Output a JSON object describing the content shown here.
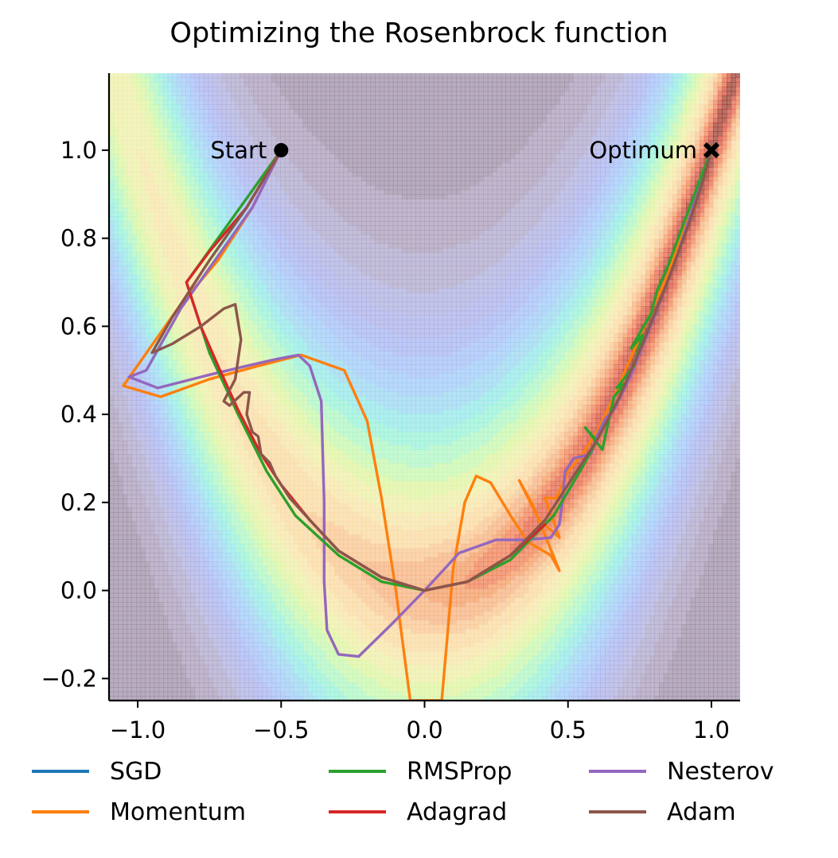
{
  "chart_data": {
    "type": "line",
    "title": "Optimizing the Rosenbrock function",
    "xlabel": "",
    "ylabel": "",
    "xlim": [
      -1.1,
      1.1
    ],
    "ylim": [
      -0.25,
      1.175
    ],
    "x_ticks": [
      "−1.0",
      "−0.5",
      "0.0",
      "0.5",
      "1.0"
    ],
    "y_ticks": [
      "−0.2",
      "0.0",
      "0.2",
      "0.4",
      "0.6",
      "0.8",
      "1.0"
    ],
    "x_tick_values": [
      -1.0,
      -0.5,
      0.0,
      0.5,
      1.0
    ],
    "y_tick_values": [
      -0.2,
      0.0,
      0.2,
      0.4,
      0.6,
      0.8,
      1.0
    ],
    "background": "filled contour plot of the Rosenbrock function",
    "annotations": [
      {
        "label": "Start",
        "x": -0.5,
        "y": 1.0,
        "marker": "circle"
      },
      {
        "label": "Optimum",
        "x": 1.0,
        "y": 1.0,
        "marker": "x"
      }
    ],
    "legend": {
      "placement": "below",
      "columns": 3
    },
    "series": [
      {
        "name": "SGD",
        "color": "#1f77b4",
        "points": []
      },
      {
        "name": "Momentum",
        "color": "#ff7f0e",
        "points": [
          [
            -0.5,
            1.0
          ],
          [
            -0.6,
            0.87
          ],
          [
            -0.72,
            0.75
          ],
          [
            -0.85,
            0.65
          ],
          [
            -0.98,
            0.53
          ],
          [
            -1.05,
            0.465
          ],
          [
            -0.92,
            0.44
          ],
          [
            -0.75,
            0.48
          ],
          [
            -0.58,
            0.51
          ],
          [
            -0.43,
            0.535
          ],
          [
            -0.28,
            0.5
          ],
          [
            -0.2,
            0.385
          ],
          [
            -0.15,
            0.21
          ],
          [
            -0.1,
            0.0
          ],
          [
            -0.05,
            -0.25
          ],
          [
            0.06,
            -0.25
          ],
          [
            0.1,
            0.05
          ],
          [
            0.14,
            0.2
          ],
          [
            0.18,
            0.26
          ],
          [
            0.23,
            0.245
          ],
          [
            0.3,
            0.17
          ],
          [
            0.36,
            0.11
          ],
          [
            0.44,
            0.08
          ],
          [
            0.47,
            0.045
          ],
          [
            0.38,
            0.19
          ],
          [
            0.33,
            0.25
          ],
          [
            0.4,
            0.16
          ],
          [
            0.47,
            0.12
          ],
          [
            0.42,
            0.21
          ],
          [
            0.46,
            0.21
          ],
          [
            0.5,
            0.27
          ],
          [
            0.55,
            0.31
          ],
          [
            0.6,
            0.36
          ],
          [
            0.66,
            0.44
          ],
          [
            0.72,
            0.53
          ],
          [
            0.78,
            0.62
          ],
          [
            0.85,
            0.72
          ],
          [
            0.92,
            0.85
          ],
          [
            0.97,
            0.95
          ],
          [
            1.0,
            1.0
          ]
        ]
      },
      {
        "name": "RMSProp",
        "color": "#2ca02c",
        "points": [
          [
            -0.5,
            1.0
          ],
          [
            -0.83,
            0.7
          ],
          [
            -0.75,
            0.54
          ],
          [
            -0.65,
            0.4
          ],
          [
            -0.55,
            0.27
          ],
          [
            -0.45,
            0.17
          ],
          [
            -0.3,
            0.08
          ],
          [
            -0.15,
            0.02
          ],
          [
            0.0,
            0.0
          ],
          [
            0.15,
            0.02
          ],
          [
            0.3,
            0.07
          ],
          [
            0.45,
            0.17
          ],
          [
            0.55,
            0.28
          ],
          [
            0.6,
            0.34
          ],
          [
            0.56,
            0.37
          ],
          [
            0.62,
            0.32
          ],
          [
            0.66,
            0.44
          ],
          [
            0.7,
            0.47
          ],
          [
            0.67,
            0.46
          ],
          [
            0.73,
            0.51
          ],
          [
            0.76,
            0.58
          ],
          [
            0.72,
            0.55
          ],
          [
            0.79,
            0.63
          ],
          [
            0.81,
            0.68
          ],
          [
            0.85,
            0.74
          ],
          [
            0.89,
            0.81
          ],
          [
            0.93,
            0.88
          ],
          [
            0.97,
            0.95
          ],
          [
            1.0,
            1.0
          ]
        ]
      },
      {
        "name": "Adagrad",
        "color": "#d62728",
        "points": [
          [
            -0.5,
            1.0
          ],
          [
            -0.62,
            0.87
          ],
          [
            -0.75,
            0.77
          ],
          [
            -0.83,
            0.7
          ],
          [
            -0.78,
            0.6
          ],
          [
            -0.72,
            0.51
          ],
          [
            -0.65,
            0.41
          ],
          [
            -0.57,
            0.31
          ],
          [
            -0.5,
            0.24
          ],
          [
            -0.4,
            0.16
          ],
          [
            -0.3,
            0.09
          ],
          [
            -0.15,
            0.03
          ],
          [
            0.0,
            0.0
          ],
          [
            0.15,
            0.02
          ],
          [
            0.3,
            0.08
          ],
          [
            0.42,
            0.15
          ]
        ]
      },
      {
        "name": "Nesterov",
        "color": "#9467bd",
        "points": [
          [
            -0.5,
            1.0
          ],
          [
            -0.6,
            0.87
          ],
          [
            -0.72,
            0.76
          ],
          [
            -0.85,
            0.64
          ],
          [
            -0.97,
            0.5
          ],
          [
            -1.03,
            0.485
          ],
          [
            -0.93,
            0.46
          ],
          [
            -0.75,
            0.49
          ],
          [
            -0.62,
            0.51
          ],
          [
            -0.52,
            0.525
          ],
          [
            -0.44,
            0.535
          ],
          [
            -0.4,
            0.51
          ],
          [
            -0.36,
            0.43
          ],
          [
            -0.35,
            0.2
          ],
          [
            -0.35,
            0.02
          ],
          [
            -0.34,
            -0.09
          ],
          [
            -0.3,
            -0.145
          ],
          [
            -0.23,
            -0.15
          ],
          [
            -0.12,
            -0.08
          ],
          [
            0.0,
            0.0
          ],
          [
            0.12,
            0.085
          ],
          [
            0.25,
            0.115
          ],
          [
            0.35,
            0.115
          ],
          [
            0.44,
            0.12
          ],
          [
            0.47,
            0.15
          ],
          [
            0.48,
            0.2
          ],
          [
            0.49,
            0.27
          ],
          [
            0.52,
            0.3
          ],
          [
            0.58,
            0.31
          ],
          [
            0.6,
            0.35
          ],
          [
            0.63,
            0.39
          ],
          [
            0.66,
            0.41
          ],
          [
            0.72,
            0.49
          ],
          [
            0.8,
            0.62
          ],
          [
            0.88,
            0.76
          ],
          [
            0.95,
            0.9
          ],
          [
            1.0,
            1.0
          ]
        ]
      },
      {
        "name": "Adam",
        "color": "#8c564b",
        "points": [
          [
            -0.5,
            1.0
          ],
          [
            -0.62,
            0.87
          ],
          [
            -0.75,
            0.75
          ],
          [
            -0.88,
            0.62
          ],
          [
            -0.95,
            0.54
          ],
          [
            -0.88,
            0.56
          ],
          [
            -0.78,
            0.6
          ],
          [
            -0.7,
            0.64
          ],
          [
            -0.66,
            0.65
          ],
          [
            -0.64,
            0.57
          ],
          [
            -0.66,
            0.48
          ],
          [
            -0.7,
            0.43
          ],
          [
            -0.68,
            0.42
          ],
          [
            -0.63,
            0.45
          ],
          [
            -0.61,
            0.45
          ],
          [
            -0.62,
            0.4
          ],
          [
            -0.6,
            0.36
          ],
          [
            -0.58,
            0.35
          ],
          [
            -0.57,
            0.31
          ],
          [
            -0.54,
            0.29
          ],
          [
            -0.52,
            0.26
          ],
          [
            -0.47,
            0.21
          ],
          [
            -0.4,
            0.16
          ],
          [
            -0.3,
            0.09
          ],
          [
            -0.15,
            0.03
          ],
          [
            0.0,
            0.0
          ],
          [
            0.15,
            0.02
          ],
          [
            0.3,
            0.08
          ],
          [
            0.42,
            0.16
          ],
          [
            0.52,
            0.26
          ],
          [
            0.6,
            0.34
          ],
          [
            0.68,
            0.44
          ],
          [
            0.76,
            0.56
          ],
          [
            0.84,
            0.69
          ],
          [
            0.92,
            0.83
          ],
          [
            0.97,
            0.93
          ],
          [
            1.0,
            1.0
          ]
        ]
      }
    ]
  }
}
